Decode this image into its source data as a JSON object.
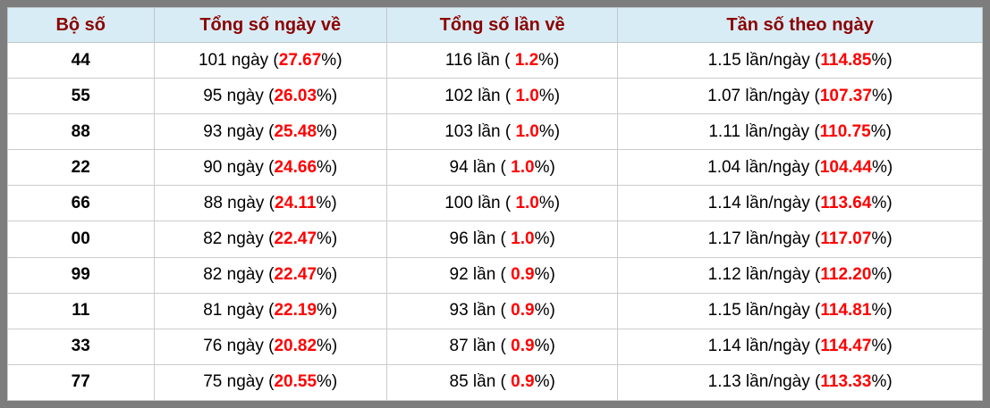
{
  "colors": {
    "frame_gray": "#7d7d7d",
    "header_bg": "#d8ecf5",
    "header_text": "#8b0000",
    "highlight_red": "#ff0000",
    "grid_line": "#cccccc"
  },
  "table": {
    "pct_suffix": "%)",
    "columns": [
      {
        "id": "pair",
        "label": "Bộ số"
      },
      {
        "id": "days",
        "label": "Tổng số ngày về"
      },
      {
        "id": "times",
        "label": "Tổng số lần về"
      },
      {
        "id": "freq",
        "label": "Tần số theo ngày"
      }
    ],
    "rows": [
      {
        "pair": "44",
        "days_prefix": "101 ngày (",
        "days_pct": "27.67",
        "times_prefix": "116 lần ( ",
        "times_pct": "1.2",
        "freq_prefix": "1.15 lần/ngày (",
        "freq_pct": "114.85"
      },
      {
        "pair": "55",
        "days_prefix": "95 ngày (",
        "days_pct": "26.03",
        "times_prefix": "102 lần ( ",
        "times_pct": "1.0",
        "freq_prefix": "1.07 lần/ngày (",
        "freq_pct": "107.37"
      },
      {
        "pair": "88",
        "days_prefix": "93 ngày (",
        "days_pct": "25.48",
        "times_prefix": "103 lần ( ",
        "times_pct": "1.0",
        "freq_prefix": "1.11 lần/ngày (",
        "freq_pct": "110.75"
      },
      {
        "pair": "22",
        "days_prefix": "90 ngày (",
        "days_pct": "24.66",
        "times_prefix": "94 lần ( ",
        "times_pct": "1.0",
        "freq_prefix": "1.04 lần/ngày (",
        "freq_pct": "104.44"
      },
      {
        "pair": "66",
        "days_prefix": "88 ngày (",
        "days_pct": "24.11",
        "times_prefix": "100 lần ( ",
        "times_pct": "1.0",
        "freq_prefix": "1.14 lần/ngày (",
        "freq_pct": "113.64"
      },
      {
        "pair": "00",
        "days_prefix": "82 ngày (",
        "days_pct": "22.47",
        "times_prefix": "96 lần ( ",
        "times_pct": "1.0",
        "freq_prefix": "1.17 lần/ngày (",
        "freq_pct": "117.07"
      },
      {
        "pair": "99",
        "days_prefix": "82 ngày (",
        "days_pct": "22.47",
        "times_prefix": "92 lần ( ",
        "times_pct": "0.9",
        "freq_prefix": "1.12 lần/ngày (",
        "freq_pct": "112.20"
      },
      {
        "pair": "11",
        "days_prefix": "81 ngày (",
        "days_pct": "22.19",
        "times_prefix": "93 lần ( ",
        "times_pct": "0.9",
        "freq_prefix": "1.15 lần/ngày (",
        "freq_pct": "114.81"
      },
      {
        "pair": "33",
        "days_prefix": "76 ngày (",
        "days_pct": "20.82",
        "times_prefix": "87 lần ( ",
        "times_pct": "0.9",
        "freq_prefix": "1.14 lần/ngày (",
        "freq_pct": "114.47"
      },
      {
        "pair": "77",
        "days_prefix": "75 ngày (",
        "days_pct": "20.55",
        "times_prefix": "85 lần ( ",
        "times_pct": "0.9",
        "freq_prefix": "1.13 lần/ngày (",
        "freq_pct": "113.33"
      }
    ]
  }
}
